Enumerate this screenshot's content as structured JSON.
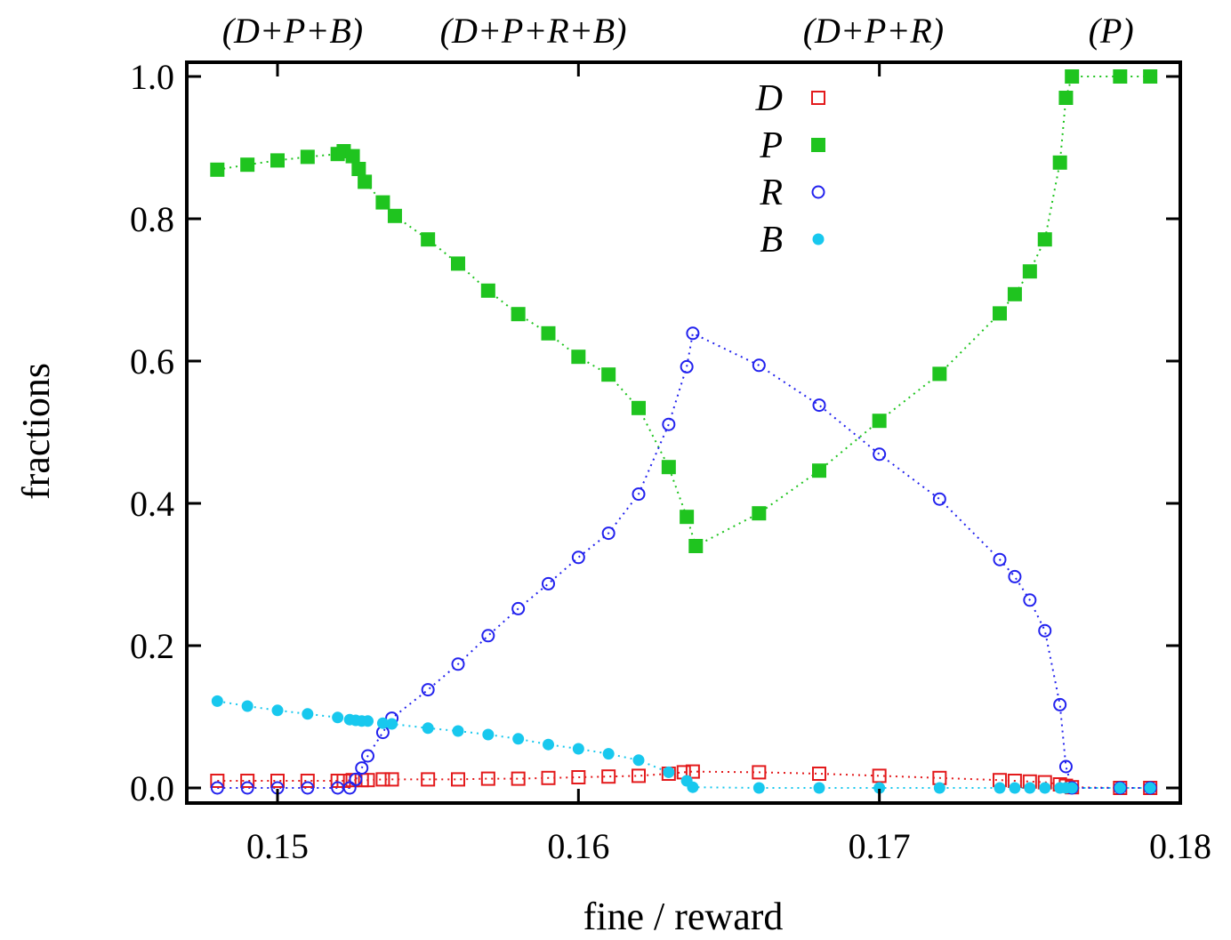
{
  "chart_data": {
    "type": "scatter",
    "xlabel": "fine / reward",
    "ylabel": "fractions",
    "xlim": [
      0.147,
      0.18
    ],
    "ylim": [
      0.0,
      1.0
    ],
    "x_ticks": [
      "0.15",
      "0.16",
      "0.17",
      "0.18"
    ],
    "y_ticks": [
      "0.0",
      "0.2",
      "0.4",
      "0.6",
      "0.8",
      "1.0"
    ],
    "legend_placement": "top-center",
    "phase_labels": [
      {
        "text": "(D+P+B)",
        "x": 0.1505
      },
      {
        "text": "(D+P+R+B)",
        "x": 0.1585
      },
      {
        "text": "(D+P+R)",
        "x": 0.1698
      },
      {
        "text": "(P)",
        "x": 0.1777
      }
    ],
    "series": [
      {
        "name": "D",
        "marker": "open-square",
        "color": "#e31a1c",
        "x": [
          0.148,
          0.149,
          0.15,
          0.151,
          0.152,
          0.1522,
          0.1525,
          0.1528,
          0.153,
          0.1535,
          0.1538,
          0.155,
          0.156,
          0.157,
          0.158,
          0.159,
          0.16,
          0.161,
          0.162,
          0.163,
          0.1635,
          0.1638,
          0.166,
          0.168,
          0.17,
          0.172,
          0.174,
          0.1745,
          0.175,
          0.1755,
          0.176,
          0.1762,
          0.1764,
          0.178,
          0.179
        ],
        "y": [
          0.01,
          0.01,
          0.01,
          0.01,
          0.01,
          0.01,
          0.011,
          0.011,
          0.011,
          0.012,
          0.012,
          0.012,
          0.012,
          0.013,
          0.013,
          0.014,
          0.015,
          0.016,
          0.017,
          0.02,
          0.022,
          0.023,
          0.022,
          0.02,
          0.017,
          0.014,
          0.011,
          0.01,
          0.009,
          0.008,
          0.005,
          0.003,
          0.001,
          0.0,
          0.0
        ]
      },
      {
        "name": "P",
        "marker": "filled-square",
        "color": "#1fc41f",
        "x": [
          0.148,
          0.149,
          0.15,
          0.151,
          0.152,
          0.1522,
          0.1525,
          0.1527,
          0.1529,
          0.1535,
          0.1539,
          0.155,
          0.156,
          0.157,
          0.158,
          0.159,
          0.16,
          0.161,
          0.162,
          0.163,
          0.1636,
          0.1639,
          0.166,
          0.168,
          0.17,
          0.172,
          0.174,
          0.1745,
          0.175,
          0.1755,
          0.176,
          0.1762,
          0.1764,
          0.178,
          0.179
        ],
        "y": [
          0.869,
          0.876,
          0.882,
          0.887,
          0.891,
          0.895,
          0.888,
          0.87,
          0.852,
          0.823,
          0.804,
          0.771,
          0.737,
          0.699,
          0.666,
          0.639,
          0.606,
          0.581,
          0.534,
          0.451,
          0.381,
          0.34,
          0.386,
          0.446,
          0.516,
          0.582,
          0.667,
          0.694,
          0.726,
          0.771,
          0.879,
          0.97,
          1.0,
          1.0,
          1.0
        ]
      },
      {
        "name": "R",
        "marker": "open-circle",
        "color": "#2222ee",
        "x": [
          0.148,
          0.149,
          0.15,
          0.151,
          0.152,
          0.1524,
          0.1526,
          0.1528,
          0.153,
          0.1535,
          0.1538,
          0.155,
          0.156,
          0.157,
          0.158,
          0.159,
          0.16,
          0.161,
          0.162,
          0.163,
          0.1636,
          0.1638,
          0.166,
          0.168,
          0.17,
          0.172,
          0.174,
          0.1745,
          0.175,
          0.1755,
          0.176,
          0.1762,
          0.1764,
          0.178,
          0.179
        ],
        "y": [
          0.0,
          0.0,
          0.0,
          0.0,
          0.0,
          0.0,
          0.012,
          0.028,
          0.045,
          0.078,
          0.098,
          0.138,
          0.174,
          0.214,
          0.252,
          0.287,
          0.324,
          0.358,
          0.413,
          0.511,
          0.592,
          0.639,
          0.594,
          0.538,
          0.469,
          0.406,
          0.321,
          0.297,
          0.264,
          0.221,
          0.117,
          0.03,
          0.0,
          0.0,
          0.0
        ]
      },
      {
        "name": "B",
        "marker": "filled-circle",
        "color": "#18c8ee",
        "x": [
          0.148,
          0.149,
          0.15,
          0.151,
          0.152,
          0.1524,
          0.1526,
          0.1528,
          0.153,
          0.1535,
          0.1538,
          0.155,
          0.156,
          0.157,
          0.158,
          0.159,
          0.16,
          0.161,
          0.162,
          0.163,
          0.1636,
          0.1638,
          0.166,
          0.168,
          0.17,
          0.172,
          0.174,
          0.1745,
          0.175,
          0.1755,
          0.176,
          0.1762,
          0.1764,
          0.178,
          0.179
        ],
        "y": [
          0.122,
          0.115,
          0.109,
          0.104,
          0.099,
          0.096,
          0.095,
          0.094,
          0.094,
          0.091,
          0.09,
          0.084,
          0.08,
          0.075,
          0.069,
          0.061,
          0.055,
          0.048,
          0.039,
          0.022,
          0.01,
          0.001,
          0.0,
          0.0,
          0.0,
          0.0,
          0.0,
          0.0,
          0.0,
          0.0,
          0.0,
          0.0,
          0.0,
          0.0,
          0.0
        ]
      }
    ]
  }
}
